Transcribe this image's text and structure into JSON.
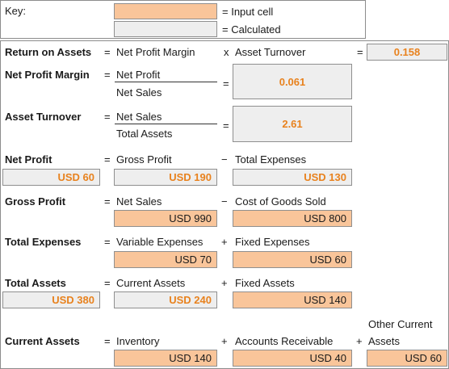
{
  "key": {
    "label": "Key:",
    "input_text": "= Input cell",
    "calc_text": "= Calculated"
  },
  "colors": {
    "input": "#f9c59a",
    "calculated": "#eeeeee",
    "accent": "#e8821e"
  },
  "roa": {
    "label": "Return on Assets",
    "eq": "=",
    "term1": "Net Profit Margin",
    "op": "x",
    "term2": "Asset Turnover",
    "eq2": "=",
    "value": "0.158"
  },
  "npm": {
    "label": "Net Profit Margin",
    "eq": "=",
    "numerator": "Net Profit",
    "denominator": "Net Sales",
    "eq2": "=",
    "value": "0.061"
  },
  "at": {
    "label": "Asset Turnover",
    "eq": "=",
    "numerator": "Net Sales",
    "denominator": "Total Assets",
    "eq2": "=",
    "value": "2.61"
  },
  "np": {
    "label": "Net Profit",
    "eq": "=",
    "term1": "Gross Profit",
    "op": "−",
    "term2": "Total Expenses",
    "value": "USD 60",
    "value1": "USD 190",
    "value2": "USD 130"
  },
  "gp": {
    "label": "Gross Profit",
    "eq": "=",
    "term1": "Net Sales",
    "op": "−",
    "term2": "Cost of Goods Sold",
    "value1": "USD 990",
    "value2": "USD 800"
  },
  "te": {
    "label": "Total Expenses",
    "eq": "=",
    "term1": "Variable Expenses",
    "op": "+",
    "term2": "Fixed Expenses",
    "value1": "USD 70",
    "value2": "USD 60"
  },
  "ta": {
    "label": "Total Assets",
    "eq": "=",
    "term1": "Current Assets",
    "op": "+",
    "term2": "Fixed Assets",
    "value": "USD 380",
    "value1": "USD 240",
    "value2": "USD 140"
  },
  "ca": {
    "label": "Current Assets",
    "eq": "=",
    "term1": "Inventory",
    "op1": "+",
    "term2": "Accounts Receivable",
    "op2": "+",
    "term3_line1": "Other Current",
    "term3_line2": "Assets",
    "value1": "USD 140",
    "value2": "USD 40",
    "value3": "USD 60"
  }
}
